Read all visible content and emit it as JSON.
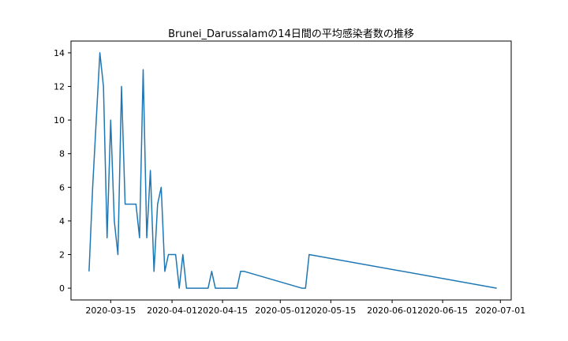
{
  "chart_data": {
    "type": "line",
    "title": "Brunei_Darussalamの14日間の平均感染者数の推移",
    "xlabel": "",
    "ylabel": "",
    "x_range": [
      "2020-03-04",
      "2020-07-04"
    ],
    "ylim": [
      -0.7,
      14.7
    ],
    "y_ticks": [
      0,
      2,
      4,
      6,
      8,
      10,
      12,
      14
    ],
    "x_ticks": [
      "2020-03-15",
      "2020-04-01",
      "2020-04-15",
      "2020-05-01",
      "2020-05-15",
      "2020-06-01",
      "2020-06-15",
      "2020-07-01"
    ],
    "grid": false,
    "color": "#1f77b4",
    "series": [
      {
        "x": [
          "2020-03-09",
          "2020-03-10",
          "2020-03-11",
          "2020-03-12",
          "2020-03-13",
          "2020-03-14",
          "2020-03-15",
          "2020-03-16",
          "2020-03-17",
          "2020-03-18",
          "2020-03-19",
          "2020-03-20",
          "2020-03-21",
          "2020-03-22",
          "2020-03-23",
          "2020-03-24",
          "2020-03-25",
          "2020-03-26",
          "2020-03-27",
          "2020-03-28",
          "2020-03-29",
          "2020-03-30",
          "2020-03-31",
          "2020-04-01",
          "2020-04-02",
          "2020-04-03",
          "2020-04-04",
          "2020-04-05",
          "2020-04-06",
          "2020-04-11",
          "2020-04-12",
          "2020-04-13",
          "2020-04-19",
          "2020-04-20",
          "2020-04-21",
          "2020-05-07",
          "2020-05-08",
          "2020-05-09",
          "2020-06-30"
        ],
        "values": [
          1,
          6,
          10,
          14,
          12,
          3,
          10,
          4,
          2,
          12,
          5,
          5,
          5,
          5,
          3,
          13,
          3,
          7,
          1,
          5,
          6,
          1,
          2,
          2,
          2,
          0,
          2,
          0,
          0,
          0,
          1,
          0,
          0,
          1,
          1,
          0,
          0,
          2,
          0
        ]
      }
    ]
  }
}
